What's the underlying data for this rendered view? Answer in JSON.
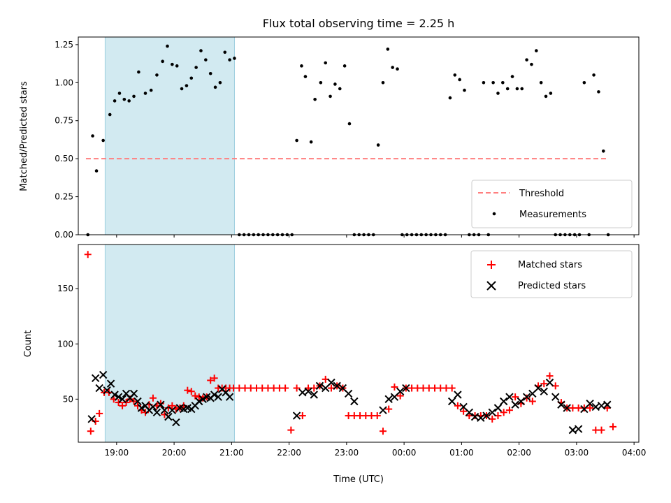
{
  "chart_data": [
    {
      "type": "scatter",
      "title": "Flux total observing time = 2.25 h",
      "xlabel": "",
      "ylabel": "Matched/Predicted stars",
      "ylim": [
        0,
        1.3
      ],
      "xlim": [
        "18:20",
        "04:05"
      ],
      "yticks": [
        0.0,
        0.25,
        0.5,
        0.75,
        1.0,
        1.25
      ],
      "ytick_labels": [
        "0.00",
        "0.25",
        "0.50",
        "0.75",
        "1.00",
        "1.25"
      ],
      "highlight_band": {
        "from": "18:48",
        "to": "21:03",
        "color": "#add8e6"
      },
      "legend": {
        "position": "lower-right",
        "entries": [
          "Threshold",
          "Measurements"
        ]
      },
      "series": [
        {
          "name": "Threshold",
          "kind": "dashed-line",
          "color": "#ff7f7f",
          "x": [
            "18:28",
            "03:32"
          ],
          "y": [
            0.5,
            0.5
          ]
        },
        {
          "name": "Measurements",
          "kind": "dots",
          "color": "#000000",
          "x": [
            "18:30",
            "18:35",
            "18:39",
            "18:46",
            "18:53",
            "18:58",
            "19:03",
            "19:08",
            "19:13",
            "19:18",
            "19:23",
            "19:30",
            "19:36",
            "19:42",
            "19:48",
            "19:53",
            "19:58",
            "20:03",
            "20:08",
            "20:13",
            "20:18",
            "20:23",
            "20:28",
            "20:33",
            "20:38",
            "20:43",
            "20:48",
            "20:53",
            "20:58",
            "21:03",
            "21:08",
            "21:13",
            "21:18",
            "21:23",
            "21:28",
            "21:33",
            "21:38",
            "21:43",
            "21:48",
            "21:53",
            "21:58",
            "22:03",
            "22:08",
            "22:13",
            "22:17",
            "22:23",
            "22:27",
            "22:33",
            "22:38",
            "22:43",
            "22:48",
            "22:53",
            "22:58",
            "23:03",
            "23:08",
            "23:13",
            "23:18",
            "23:23",
            "23:28",
            "23:33",
            "23:38",
            "23:43",
            "23:48",
            "23:53",
            "23:58",
            "00:03",
            "00:08",
            "00:13",
            "00:18",
            "00:23",
            "00:28",
            "00:33",
            "00:38",
            "00:43",
            "00:48",
            "00:53",
            "00:58",
            "01:03",
            "01:08",
            "01:13",
            "01:18",
            "01:23",
            "01:28",
            "01:33",
            "01:38",
            "01:43",
            "01:48",
            "01:53",
            "01:58",
            "02:03",
            "02:08",
            "02:13",
            "02:18",
            "02:23",
            "02:28",
            "02:33",
            "02:38",
            "02:43",
            "02:48",
            "02:53",
            "02:58",
            "03:03",
            "03:08",
            "03:13",
            "03:18",
            "03:23",
            "03:28",
            "03:33"
          ],
          "y": [
            0,
            0.65,
            0.42,
            0.62,
            0.79,
            0.88,
            0.93,
            0.89,
            0.88,
            0.91,
            1.07,
            0.93,
            0.95,
            1.05,
            1.14,
            1.24,
            1.12,
            1.11,
            0.96,
            0.98,
            1.03,
            1.1,
            1.21,
            1.15,
            1.06,
            0.97,
            1.0,
            1.2,
            1.15,
            1.16,
            0,
            0,
            0,
            0,
            0,
            0,
            0,
            0,
            0,
            0,
            0,
            0,
            0.62,
            1.11,
            1.04,
            0.61,
            0.89,
            1.0,
            1.13,
            0.91,
            0.99,
            0.96,
            1.11,
            0.73,
            0,
            0,
            0,
            0,
            0,
            0.59,
            1.0,
            1.22,
            1.1,
            1.09,
            0,
            0,
            0,
            0,
            0,
            0,
            0,
            0,
            0,
            0,
            0.9,
            1.05,
            1.02,
            0.95,
            0,
            0,
            0,
            1.0,
            0,
            1.0,
            0.93,
            1.0,
            0.96,
            1.04,
            0.96,
            0.96,
            1.15,
            1.12,
            1.21,
            1.0,
            0.91,
            0.93,
            0,
            0,
            0,
            0,
            0,
            0,
            1.0,
            0,
            1.05,
            0.94,
            0.55,
            0
          ]
        }
      ]
    },
    {
      "type": "scatter",
      "title": "",
      "xlabel": "Time (UTC)",
      "ylabel": "Count",
      "ylim": [
        11,
        190
      ],
      "xlim": [
        "18:20",
        "04:05"
      ],
      "yticks": [
        50,
        100,
        150
      ],
      "ytick_labels": [
        "50",
        "100",
        "150"
      ],
      "xtick_labels": [
        "19:00",
        "20:00",
        "21:00",
        "22:00",
        "23:00",
        "00:00",
        "01:00",
        "02:00",
        "03:00",
        "04:00"
      ],
      "highlight_band": {
        "from": "18:48",
        "to": "21:03",
        "color": "#add8e6"
      },
      "legend": {
        "position": "top-right",
        "entries": [
          "Matched stars",
          "Predicted stars"
        ]
      },
      "series": [
        {
          "name": "Matched stars",
          "kind": "plus",
          "color": "#ff0000",
          "x": [
            "18:30",
            "18:33",
            "18:38",
            "18:42",
            "18:47",
            "18:52",
            "18:57",
            "19:02",
            "19:06",
            "19:10",
            "19:14",
            "19:18",
            "19:22",
            "19:26",
            "19:30",
            "19:34",
            "19:38",
            "19:42",
            "19:46",
            "19:50",
            "19:54",
            "19:58",
            "20:02",
            "20:06",
            "20:10",
            "20:14",
            "20:18",
            "20:22",
            "20:26",
            "20:30",
            "20:34",
            "20:38",
            "20:42",
            "20:46",
            "20:50",
            "20:54",
            "20:58",
            "21:02",
            "21:08",
            "21:14",
            "21:20",
            "21:26",
            "21:32",
            "21:38",
            "21:44",
            "21:50",
            "21:56",
            "22:02",
            "22:08",
            "22:14",
            "22:20",
            "22:26",
            "22:32",
            "22:38",
            "22:44",
            "22:50",
            "22:56",
            "23:02",
            "23:08",
            "23:14",
            "23:20",
            "23:26",
            "23:32",
            "23:38",
            "23:44",
            "23:50",
            "23:56",
            "00:02",
            "00:08",
            "00:14",
            "00:20",
            "00:26",
            "00:32",
            "00:38",
            "00:44",
            "00:50",
            "00:56",
            "01:02",
            "01:08",
            "01:14",
            "01:20",
            "01:26",
            "01:32",
            "01:38",
            "01:44",
            "01:50",
            "01:56",
            "02:02",
            "02:08",
            "02:14",
            "02:20",
            "02:26",
            "02:32",
            "02:38",
            "02:44",
            "02:50",
            "02:56",
            "03:02",
            "03:08",
            "03:14",
            "03:20",
            "03:26",
            "03:32",
            "03:38"
          ],
          "y": [
            181,
            21,
            30,
            37,
            56,
            56,
            50,
            47,
            44,
            47,
            50,
            48,
            44,
            40,
            38,
            45,
            51,
            44,
            46,
            36,
            42,
            44,
            41,
            42,
            44,
            58,
            57,
            53,
            52,
            51,
            52,
            67,
            69,
            60,
            60,
            60,
            60,
            60,
            60,
            60,
            60,
            60,
            60,
            60,
            60,
            60,
            60,
            22,
            60,
            35,
            60,
            60,
            62,
            68,
            60,
            62,
            60,
            35,
            35,
            35,
            35,
            35,
            35,
            21,
            41,
            61,
            53,
            60,
            60,
            60,
            60,
            60,
            60,
            60,
            60,
            60,
            44,
            39,
            35,
            35,
            35,
            35,
            32,
            35,
            38,
            40,
            52,
            46,
            51,
            48,
            62,
            64,
            71,
            62,
            47,
            42,
            42,
            42,
            42,
            42,
            22,
            22,
            42,
            25
          ]
        },
        {
          "name": "Predicted stars",
          "kind": "x",
          "color": "#000000",
          "x": [
            "18:34",
            "18:38",
            "18:42",
            "18:46",
            "18:50",
            "18:54",
            "18:58",
            "19:02",
            "19:06",
            "19:10",
            "19:14",
            "19:18",
            "19:22",
            "19:26",
            "19:30",
            "19:34",
            "19:38",
            "19:42",
            "19:46",
            "19:50",
            "19:54",
            "19:58",
            "20:02",
            "20:06",
            "20:10",
            "20:14",
            "20:18",
            "20:22",
            "20:26",
            "20:30",
            "20:34",
            "20:38",
            "20:42",
            "20:46",
            "20:50",
            "20:54",
            "20:58",
            "22:08",
            "22:14",
            "22:20",
            "22:26",
            "22:32",
            "22:38",
            "22:44",
            "22:50",
            "22:56",
            "23:02",
            "23:08",
            "23:38",
            "23:44",
            "23:50",
            "23:56",
            "00:02",
            "00:50",
            "00:56",
            "01:02",
            "01:08",
            "01:14",
            "01:20",
            "01:26",
            "01:32",
            "01:38",
            "01:44",
            "01:50",
            "01:56",
            "02:02",
            "02:08",
            "02:14",
            "02:20",
            "02:26",
            "02:32",
            "02:38",
            "02:44",
            "02:50",
            "02:56",
            "03:02",
            "03:08",
            "03:14",
            "03:20",
            "03:26",
            "03:32"
          ],
          "y": [
            32,
            69,
            60,
            72,
            58,
            64,
            54,
            52,
            50,
            55,
            51,
            55,
            48,
            42,
            44,
            40,
            43,
            38,
            45,
            40,
            34,
            40,
            29,
            42,
            41,
            42,
            41,
            44,
            48,
            50,
            52,
            51,
            54,
            52,
            59,
            56,
            52,
            35,
            56,
            57,
            54,
            62,
            60,
            65,
            62,
            60,
            55,
            48,
            40,
            50,
            52,
            57,
            60,
            48,
            54,
            43,
            38,
            34,
            33,
            35,
            38,
            42,
            48,
            52,
            45,
            48,
            52,
            55,
            60,
            57,
            65,
            52,
            45,
            42,
            22,
            23,
            41,
            46,
            43,
            44,
            45
          ]
        }
      ]
    }
  ]
}
